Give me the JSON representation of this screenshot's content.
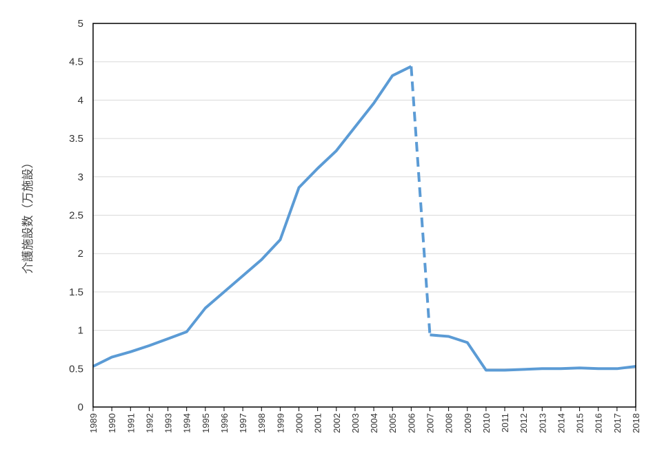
{
  "chart_data": {
    "type": "line",
    "title": "",
    "xlabel": "",
    "ylabel": "介護施設数（万施設）",
    "ylim": [
      0,
      5
    ],
    "yticks": [
      "0",
      "0.5",
      "1",
      "1.5",
      "2",
      "2.5",
      "3",
      "3.5",
      "4",
      "4.5",
      "5"
    ],
    "grid": "horizontal",
    "legend": "none",
    "line_color": "#5B9BD5",
    "categories": [
      "1989",
      "1990",
      "1991",
      "1992",
      "1993",
      "1994",
      "1995",
      "1996",
      "1997",
      "1998",
      "1999",
      "2000",
      "2001",
      "2002",
      "2003",
      "2004",
      "2005",
      "2006",
      "2007",
      "2008",
      "2009",
      "2010",
      "2011",
      "2012",
      "2013",
      "2014",
      "2015",
      "2016",
      "2017",
      "2018"
    ],
    "series": [
      {
        "values": [
          0.53,
          0.65,
          0.72,
          0.8,
          0.89,
          0.98,
          1.29,
          1.5,
          1.71,
          1.92,
          2.18,
          2.86,
          3.11,
          3.34,
          3.65,
          3.96,
          4.32,
          4.44,
          0.94,
          0.92,
          0.84,
          0.48,
          0.48,
          0.49,
          0.5,
          0.5,
          0.51,
          0.5,
          0.5,
          0.53
        ],
        "dashed_segment": [
          "2006",
          "2007"
        ]
      }
    ]
  }
}
